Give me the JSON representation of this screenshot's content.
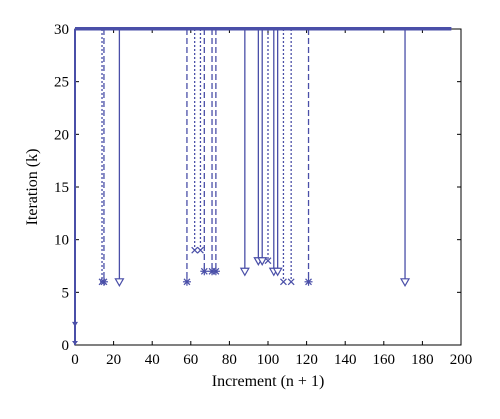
{
  "chart_data": {
    "type": "line",
    "xlabel": "Increment (n + 1)",
    "ylabel": "Iteration (k)",
    "xlim": [
      0,
      200
    ],
    "ylim": [
      0,
      30
    ],
    "x_ticks": [
      0,
      20,
      40,
      60,
      80,
      100,
      120,
      140,
      160,
      180,
      200
    ],
    "y_ticks": [
      0,
      5,
      10,
      15,
      20,
      25,
      30
    ],
    "grid": false,
    "color": "#4a4fa8",
    "baseline": {
      "y": 30,
      "x_start": 0,
      "x_end": 195
    },
    "start_drop": {
      "x": 0,
      "y_min": 0
    },
    "series": [
      {
        "style": "solid",
        "marker": "triangle-down",
        "drops": [
          [
            23,
            6
          ],
          [
            88,
            7
          ],
          [
            95,
            8
          ],
          [
            97,
            8
          ],
          [
            103,
            7
          ],
          [
            105,
            7
          ],
          [
            171,
            6
          ]
        ]
      },
      {
        "style": "dashed",
        "marker": "star",
        "drops": [
          [
            15,
            6
          ],
          [
            58,
            6
          ],
          [
            67,
            7
          ],
          [
            71,
            7
          ],
          [
            73,
            7
          ],
          [
            121,
            6
          ]
        ]
      },
      {
        "style": "dotted",
        "marker": "cross",
        "drops": [
          [
            14,
            6
          ],
          [
            62,
            9
          ],
          [
            65,
            9
          ],
          [
            100,
            8
          ],
          [
            108,
            6
          ],
          [
            112,
            6
          ]
        ]
      }
    ]
  }
}
